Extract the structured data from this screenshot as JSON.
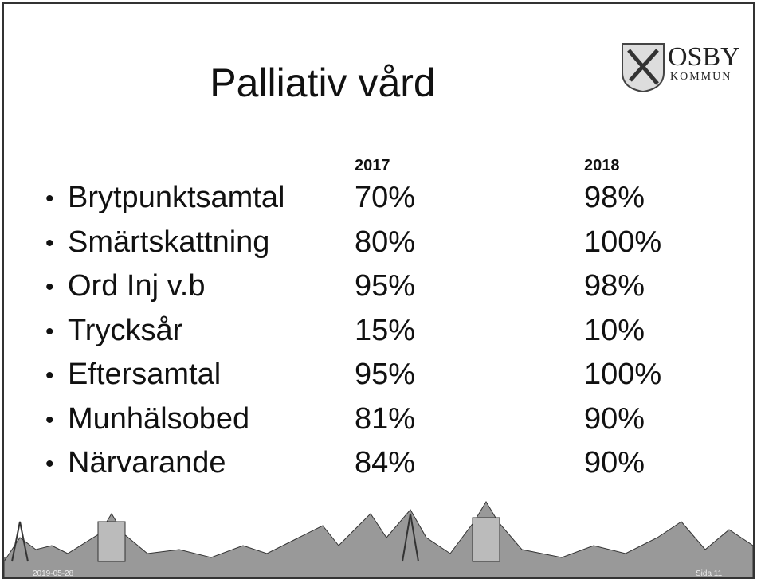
{
  "header": {
    "title": "Palliativ vård",
    "logo": {
      "name": "OSBY",
      "subtitle": "KOMMUN"
    }
  },
  "table": {
    "columns": [
      "2017",
      "2018"
    ],
    "rows": [
      [
        "Brytpunktsamtal",
        "70%",
        "98%"
      ],
      [
        "Smärtskattning",
        "80%",
        "100%"
      ],
      [
        "Ord Inj v.b",
        "95%",
        "98%"
      ],
      [
        "Trycksår",
        "15%",
        "10%"
      ],
      [
        "Eftersamtal",
        "95%",
        "100%"
      ],
      [
        "Munhälsobed",
        "81%",
        "90%"
      ],
      [
        "Närvarande",
        "84%",
        "90%"
      ]
    ]
  },
  "footer": {
    "date": "2019-05-28",
    "page": "Sida 11"
  }
}
